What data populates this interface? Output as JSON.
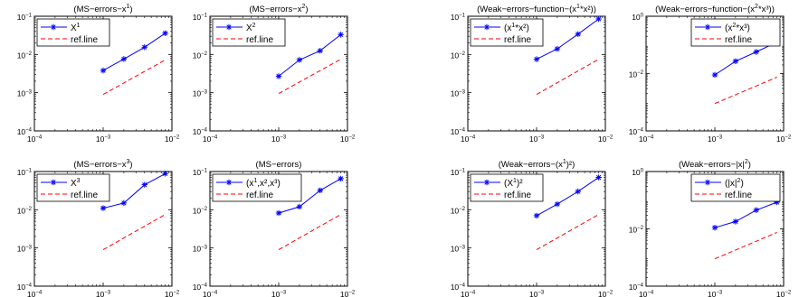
{
  "chart_data": [
    {
      "type": "line",
      "xscale": "log",
      "yscale": "log",
      "title": "(MS−errors−x",
      "title_sup": "1",
      "title_tail": ")",
      "xlim": [
        0.0001,
        0.01
      ],
      "ylim": [
        0.0001,
        0.1
      ],
      "xticks": [
        {
          "v": 0.0001,
          "label": "10",
          "sup": "−4"
        },
        {
          "v": 0.001,
          "label": "10",
          "sup": "−3"
        },
        {
          "v": 0.01,
          "label": "10",
          "sup": "−2"
        }
      ],
      "yticks": [
        {
          "v": 0.0001,
          "label": "10",
          "sup": "−4"
        },
        {
          "v": 0.001,
          "label": "10",
          "sup": "−3"
        },
        {
          "v": 0.01,
          "label": "10",
          "sup": "−2"
        },
        {
          "v": 0.1,
          "label": "10",
          "sup": "−1"
        }
      ],
      "legend": {
        "placement": "top-left",
        "entries": [
          {
            "text": "X",
            "sup": "1",
            "tail": ""
          },
          {
            "text": "ref.line",
            "sup": "",
            "tail": ""
          }
        ]
      },
      "series": [
        {
          "name": "X1",
          "style": "solid-star",
          "color": "#0000ff",
          "x": [
            0.001,
            0.002,
            0.004,
            0.008
          ],
          "y": [
            0.0038,
            0.0076,
            0.0155,
            0.036
          ]
        },
        {
          "name": "ref.line",
          "style": "dashed",
          "color": "#ff0000",
          "x": [
            0.001,
            0.008
          ],
          "y": [
            0.0009,
            0.0072
          ]
        }
      ]
    },
    {
      "type": "line",
      "xscale": "log",
      "yscale": "log",
      "title": "(MS−errors−x",
      "title_sup": "2",
      "title_tail": ")",
      "xlim": [
        0.0001,
        0.01
      ],
      "ylim": [
        0.0001,
        0.1
      ],
      "xticks": [
        {
          "v": 0.0001,
          "label": "10",
          "sup": "−4"
        },
        {
          "v": 0.001,
          "label": "10",
          "sup": "−3"
        },
        {
          "v": 0.01,
          "label": "10",
          "sup": "−2"
        }
      ],
      "yticks": [
        {
          "v": 0.0001,
          "label": "10",
          "sup": "−4"
        },
        {
          "v": 0.001,
          "label": "10",
          "sup": "−3"
        },
        {
          "v": 0.01,
          "label": "10",
          "sup": "−2"
        },
        {
          "v": 0.1,
          "label": "10",
          "sup": "−1"
        }
      ],
      "legend": {
        "placement": "top-left",
        "entries": [
          {
            "text": "X",
            "sup": "2",
            "tail": ""
          },
          {
            "text": "ref.line",
            "sup": "",
            "tail": ""
          }
        ]
      },
      "series": [
        {
          "name": "X2",
          "style": "solid-star",
          "color": "#0000ff",
          "x": [
            0.001,
            0.002,
            0.004,
            0.008
          ],
          "y": [
            0.0027,
            0.0072,
            0.0125,
            0.033
          ]
        },
        {
          "name": "ref.line",
          "style": "dashed",
          "color": "#ff0000",
          "x": [
            0.001,
            0.008
          ],
          "y": [
            0.00095,
            0.0075
          ]
        }
      ]
    },
    {
      "type": "line",
      "xscale": "log",
      "yscale": "log",
      "title": "(Weak−errors−function−(x",
      "title_sup": "1",
      "title_tail": "*x²))",
      "xlim": [
        0.0001,
        0.01
      ],
      "ylim": [
        0.0001,
        0.1
      ],
      "xticks": [
        {
          "v": 0.0001,
          "label": "10",
          "sup": "−4"
        },
        {
          "v": 0.001,
          "label": "10",
          "sup": "−3"
        },
        {
          "v": 0.01,
          "label": "10",
          "sup": "−2"
        }
      ],
      "yticks": [
        {
          "v": 0.0001,
          "label": "10",
          "sup": "−4"
        },
        {
          "v": 0.001,
          "label": "10",
          "sup": "−3"
        },
        {
          "v": 0.01,
          "label": "10",
          "sup": "−2"
        },
        {
          "v": 0.1,
          "label": "10",
          "sup": "−1"
        }
      ],
      "legend": {
        "placement": "top-left",
        "entries": [
          {
            "text": "(x",
            "sup": "1",
            "tail": "*x²)"
          },
          {
            "text": "ref.line",
            "sup": "",
            "tail": ""
          }
        ]
      },
      "series": [
        {
          "name": "(x1*x2)",
          "style": "solid-star",
          "color": "#0000ff",
          "x": [
            0.001,
            0.002,
            0.004,
            0.008
          ],
          "y": [
            0.0075,
            0.014,
            0.034,
            0.085
          ]
        },
        {
          "name": "ref.line",
          "style": "dashed",
          "color": "#ff0000",
          "x": [
            0.001,
            0.008
          ],
          "y": [
            0.0009,
            0.0075
          ]
        }
      ]
    },
    {
      "type": "line",
      "xscale": "log",
      "yscale": "log",
      "title": "(Weak−errors−function−(x",
      "title_sup": "2",
      "title_tail": "*x³))",
      "xlim": [
        0.0001,
        0.01
      ],
      "ylim": [
        0.0001,
        1
      ],
      "xticks": [
        {
          "v": 0.0001,
          "label": "10",
          "sup": "−4"
        },
        {
          "v": 0.001,
          "label": "10",
          "sup": "−3"
        },
        {
          "v": 0.01,
          "label": "10",
          "sup": "−2"
        }
      ],
      "yticks": [
        {
          "v": 0.0001,
          "label": "10",
          "sup": "−4"
        },
        {
          "v": 0.01,
          "label": "10",
          "sup": "−2"
        },
        {
          "v": 1,
          "label": "10",
          "sup": "0"
        }
      ],
      "legend": {
        "placement": "top-right",
        "entries": [
          {
            "text": "(x",
            "sup": "2",
            "tail": "*x³)"
          },
          {
            "text": "ref.line",
            "sup": "",
            "tail": ""
          }
        ]
      },
      "series": [
        {
          "name": "(x2*x3)",
          "style": "solid-star",
          "color": "#0000ff",
          "x": [
            0.001,
            0.002,
            0.004,
            0.008
          ],
          "y": [
            0.009,
            0.027,
            0.057,
            0.125
          ]
        },
        {
          "name": "ref.line",
          "style": "dashed",
          "color": "#ff0000",
          "x": [
            0.001,
            0.008
          ],
          "y": [
            0.0009,
            0.0075
          ]
        }
      ]
    },
    {
      "type": "line",
      "xscale": "log",
      "yscale": "log",
      "title": "(MS−errors−x",
      "title_sup": "3",
      "title_tail": ")",
      "xlim": [
        0.0001,
        0.01
      ],
      "ylim": [
        0.0001,
        0.1
      ],
      "xticks": [
        {
          "v": 0.0001,
          "label": "10",
          "sup": "−4"
        },
        {
          "v": 0.001,
          "label": "10",
          "sup": "−3"
        },
        {
          "v": 0.01,
          "label": "10",
          "sup": "−2"
        }
      ],
      "yticks": [
        {
          "v": 0.0001,
          "label": "10",
          "sup": "−4"
        },
        {
          "v": 0.001,
          "label": "10",
          "sup": "−3"
        },
        {
          "v": 0.01,
          "label": "10",
          "sup": "−2"
        },
        {
          "v": 0.1,
          "label": "10",
          "sup": "−1"
        }
      ],
      "legend": {
        "placement": "top-left",
        "entries": [
          {
            "text": "X",
            "sup": "3",
            "tail": ""
          },
          {
            "text": "ref.line",
            "sup": "",
            "tail": ""
          }
        ]
      },
      "series": [
        {
          "name": "X3",
          "style": "solid-star",
          "color": "#0000ff",
          "x": [
            0.001,
            0.002,
            0.004,
            0.008
          ],
          "y": [
            0.011,
            0.015,
            0.045,
            0.088
          ]
        },
        {
          "name": "ref.line",
          "style": "dashed",
          "color": "#ff0000",
          "x": [
            0.001,
            0.008
          ],
          "y": [
            0.0009,
            0.0075
          ]
        }
      ]
    },
    {
      "type": "line",
      "xscale": "log",
      "yscale": "log",
      "title": "(MS−errors)",
      "title_sup": "",
      "title_tail": "",
      "xlim": [
        0.0001,
        0.01
      ],
      "ylim": [
        0.0001,
        0.1
      ],
      "xticks": [
        {
          "v": 0.0001,
          "label": "10",
          "sup": "−4"
        },
        {
          "v": 0.001,
          "label": "10",
          "sup": "−3"
        },
        {
          "v": 0.01,
          "label": "10",
          "sup": "−2"
        }
      ],
      "yticks": [
        {
          "v": 0.0001,
          "label": "10",
          "sup": "−4"
        },
        {
          "v": 0.001,
          "label": "10",
          "sup": "−3"
        },
        {
          "v": 0.01,
          "label": "10",
          "sup": "−2"
        },
        {
          "v": 0.1,
          "label": "10",
          "sup": "−1"
        }
      ],
      "legend": {
        "placement": "top-left",
        "entries": [
          {
            "text": "(x",
            "sup": "1",
            "tail": ",x²,x³)"
          },
          {
            "text": "ref.line",
            "sup": "",
            "tail": ""
          }
        ]
      },
      "series": [
        {
          "name": "(x1,x2,x3)",
          "style": "solid-star",
          "color": "#0000ff",
          "x": [
            0.001,
            0.002,
            0.004,
            0.008
          ],
          "y": [
            0.0082,
            0.012,
            0.032,
            0.065
          ]
        },
        {
          "name": "ref.line",
          "style": "dashed",
          "color": "#ff0000",
          "x": [
            0.001,
            0.008
          ],
          "y": [
            0.0009,
            0.0075
          ]
        }
      ]
    },
    {
      "type": "line",
      "xscale": "log",
      "yscale": "log",
      "title": "(Weak−errors−(x",
      "title_sup": "1",
      "title_tail": ")²)",
      "xlim": [
        0.0001,
        0.01
      ],
      "ylim": [
        0.0001,
        0.1
      ],
      "xticks": [
        {
          "v": 0.0001,
          "label": "10",
          "sup": "−4"
        },
        {
          "v": 0.001,
          "label": "10",
          "sup": "−3"
        },
        {
          "v": 0.01,
          "label": "10",
          "sup": "−2"
        }
      ],
      "yticks": [
        {
          "v": 0.0001,
          "label": "10",
          "sup": "−4"
        },
        {
          "v": 0.001,
          "label": "10",
          "sup": "−3"
        },
        {
          "v": 0.01,
          "label": "10",
          "sup": "−2"
        },
        {
          "v": 0.1,
          "label": "10",
          "sup": "−1"
        }
      ],
      "legend": {
        "placement": "top-left",
        "entries": [
          {
            "text": "(X",
            "sup": "1",
            "tail": ")²"
          },
          {
            "text": "ref.line",
            "sup": "",
            "tail": ""
          }
        ]
      },
      "series": [
        {
          "name": "(X1)2",
          "style": "solid-star",
          "color": "#0000ff",
          "x": [
            0.001,
            0.002,
            0.004,
            0.008
          ],
          "y": [
            0.007,
            0.014,
            0.03,
            0.07
          ]
        },
        {
          "name": "ref.line",
          "style": "dashed",
          "color": "#ff0000",
          "x": [
            0.001,
            0.008
          ],
          "y": [
            0.0009,
            0.0075
          ]
        }
      ]
    },
    {
      "type": "line",
      "xscale": "log",
      "yscale": "log",
      "title": "(Weak−errors−|x|",
      "title_sup": "2",
      "title_tail": ")",
      "xlim": [
        0.0001,
        0.01
      ],
      "ylim": [
        0.0001,
        1
      ],
      "xticks": [
        {
          "v": 0.0001,
          "label": "10",
          "sup": "−4"
        },
        {
          "v": 0.001,
          "label": "10",
          "sup": "−3"
        },
        {
          "v": 0.01,
          "label": "10",
          "sup": "−2"
        }
      ],
      "yticks": [
        {
          "v": 0.0001,
          "label": "10",
          "sup": "−4"
        },
        {
          "v": 0.01,
          "label": "10",
          "sup": "−2"
        },
        {
          "v": 1,
          "label": "10",
          "sup": "0"
        }
      ],
      "legend": {
        "placement": "top-right",
        "entries": [
          {
            "text": "(|x|",
            "sup": "2",
            "tail": ")"
          },
          {
            "text": "ref.line",
            "sup": "",
            "tail": ""
          }
        ]
      },
      "series": [
        {
          "name": "(|x|2)",
          "style": "solid-star",
          "color": "#0000ff",
          "x": [
            0.001,
            0.002,
            0.004,
            0.008
          ],
          "y": [
            0.011,
            0.018,
            0.045,
            0.085
          ]
        },
        {
          "name": "ref.line",
          "style": "dashed",
          "color": "#ff0000",
          "x": [
            0.001,
            0.008
          ],
          "y": [
            0.0009,
            0.0075
          ]
        }
      ]
    }
  ]
}
